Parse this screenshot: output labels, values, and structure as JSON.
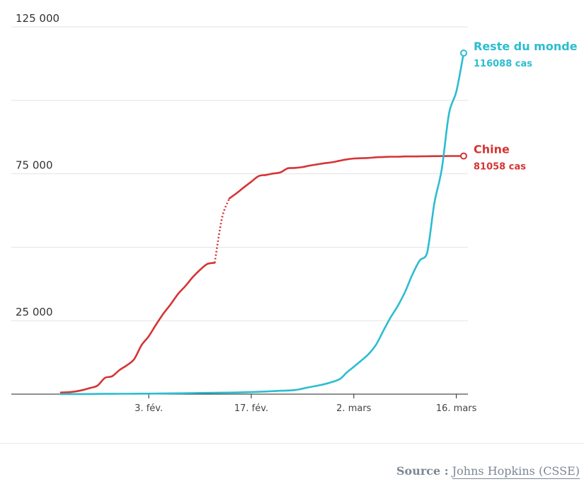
{
  "chart_data": {
    "type": "line",
    "title": "",
    "xlabel": "",
    "ylabel": "",
    "ylim": [
      0,
      125000
    ],
    "y_grid_values": [
      0,
      25000,
      50000,
      75000,
      100000,
      125000
    ],
    "y_tick_labels": [
      {
        "value": 125000,
        "label": "125 000"
      },
      {
        "value": 75000,
        "label": "75 000"
      },
      {
        "value": 25000,
        "label": "25 000"
      }
    ],
    "xlim": [
      "2020-01-22",
      "2020-03-17"
    ],
    "x_tick_labels": [
      {
        "date": "2020-02-03",
        "label": "3. fév."
      },
      {
        "date": "2020-02-17",
        "label": "17. fév."
      },
      {
        "date": "2020-03-02",
        "label": "2. mars"
      },
      {
        "date": "2020-03-16",
        "label": "16. mars"
      }
    ],
    "grid": true,
    "series": [
      {
        "name": "Chine",
        "end_label": "81058 cas",
        "color": "#d63434",
        "dotted_range": [
          "2020-02-12",
          "2020-02-14"
        ],
        "points": [
          [
            "2020-01-22",
            550
          ],
          [
            "2020-01-23",
            640
          ],
          [
            "2020-01-24",
            920
          ],
          [
            "2020-01-25",
            1400
          ],
          [
            "2020-01-26",
            2100
          ],
          [
            "2020-01-27",
            2900
          ],
          [
            "2020-01-28",
            5500
          ],
          [
            "2020-01-29",
            6100
          ],
          [
            "2020-01-30",
            8200
          ],
          [
            "2020-01-31",
            9800
          ],
          [
            "2020-02-01",
            11900
          ],
          [
            "2020-02-02",
            16600
          ],
          [
            "2020-02-03",
            19700
          ],
          [
            "2020-02-04",
            23700
          ],
          [
            "2020-02-05",
            27400
          ],
          [
            "2020-02-06",
            30600
          ],
          [
            "2020-02-07",
            34100
          ],
          [
            "2020-02-08",
            36800
          ],
          [
            "2020-02-09",
            39800
          ],
          [
            "2020-02-10",
            42300
          ],
          [
            "2020-02-11",
            44300
          ],
          [
            "2020-02-12",
            44700
          ],
          [
            "2020-02-13",
            59900
          ],
          [
            "2020-02-14",
            66600
          ],
          [
            "2020-02-15",
            68400
          ],
          [
            "2020-02-16",
            70400
          ],
          [
            "2020-02-17",
            72300
          ],
          [
            "2020-02-18",
            74200
          ],
          [
            "2020-02-19",
            74600
          ],
          [
            "2020-02-20",
            75100
          ],
          [
            "2020-02-21",
            75500
          ],
          [
            "2020-02-22",
            76900
          ],
          [
            "2020-02-23",
            77000
          ],
          [
            "2020-02-24",
            77300
          ],
          [
            "2020-02-25",
            77800
          ],
          [
            "2020-02-26",
            78200
          ],
          [
            "2020-02-27",
            78600
          ],
          [
            "2020-02-28",
            78900
          ],
          [
            "2020-02-29",
            79400
          ],
          [
            "2020-03-01",
            79900
          ],
          [
            "2020-03-02",
            80200
          ],
          [
            "2020-03-03",
            80300
          ],
          [
            "2020-03-04",
            80400
          ],
          [
            "2020-03-05",
            80600
          ],
          [
            "2020-03-06",
            80700
          ],
          [
            "2020-03-07",
            80800
          ],
          [
            "2020-03-08",
            80800
          ],
          [
            "2020-03-09",
            80900
          ],
          [
            "2020-03-10",
            80900
          ],
          [
            "2020-03-11",
            80950
          ],
          [
            "2020-03-12",
            80980
          ],
          [
            "2020-03-13",
            81000
          ],
          [
            "2020-03-14",
            81020
          ],
          [
            "2020-03-15",
            81040
          ],
          [
            "2020-03-16",
            81048
          ],
          [
            "2020-03-17",
            81058
          ]
        ]
      },
      {
        "name": "Reste du monde",
        "end_label": "116088 cas",
        "color": "#2bbdd0",
        "points": [
          [
            "2020-01-22",
            0
          ],
          [
            "2020-01-24",
            30
          ],
          [
            "2020-01-26",
            60
          ],
          [
            "2020-01-28",
            90
          ],
          [
            "2020-01-30",
            120
          ],
          [
            "2020-02-01",
            140
          ],
          [
            "2020-02-03",
            170
          ],
          [
            "2020-02-05",
            220
          ],
          [
            "2020-02-07",
            290
          ],
          [
            "2020-02-09",
            350
          ],
          [
            "2020-02-11",
            430
          ],
          [
            "2020-02-13",
            500
          ],
          [
            "2020-02-15",
            560
          ],
          [
            "2020-02-17",
            700
          ],
          [
            "2020-02-19",
            900
          ],
          [
            "2020-02-21",
            1150
          ],
          [
            "2020-02-23",
            1400
          ],
          [
            "2020-02-25",
            2400
          ],
          [
            "2020-02-27",
            3400
          ],
          [
            "2020-02-29",
            5000
          ],
          [
            "2020-03-01",
            7300
          ],
          [
            "2020-03-02",
            9300
          ],
          [
            "2020-03-03",
            11400
          ],
          [
            "2020-03-04",
            13600
          ],
          [
            "2020-03-05",
            16700
          ],
          [
            "2020-03-06",
            21400
          ],
          [
            "2020-03-07",
            26000
          ],
          [
            "2020-03-08",
            30000
          ],
          [
            "2020-03-09",
            34800
          ],
          [
            "2020-03-10",
            40700
          ],
          [
            "2020-03-11",
            45500
          ],
          [
            "2020-03-12",
            48000
          ],
          [
            "2020-03-13",
            65000
          ],
          [
            "2020-03-14",
            76500
          ],
          [
            "2020-03-15",
            95500
          ],
          [
            "2020-03-16",
            103000
          ],
          [
            "2020-03-17",
            116088
          ]
        ]
      }
    ]
  },
  "source": {
    "label": "Source :",
    "link_text": "Johns Hopkins (CSSE)"
  }
}
